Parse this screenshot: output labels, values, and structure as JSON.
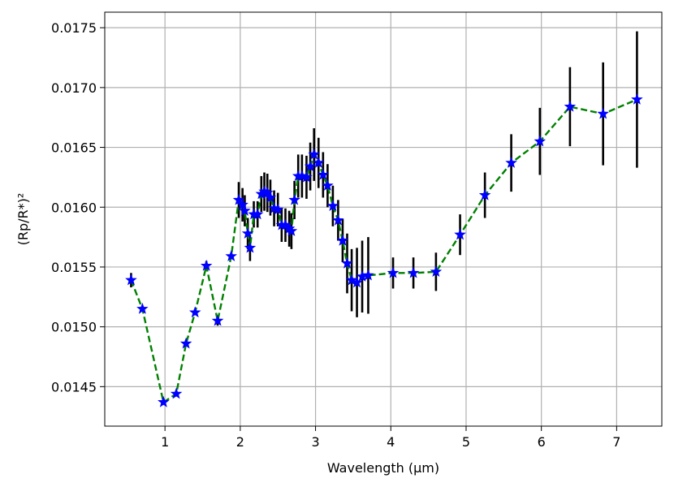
{
  "chart_data": {
    "type": "scatter",
    "title": "",
    "xlabel": "Wavelength (μm)",
    "ylabel": "(Rp/R*)²",
    "xlim": [
      0.2,
      7.6
    ],
    "ylim": [
      0.01417,
      0.01763
    ],
    "xticks": [
      1,
      2,
      3,
      4,
      5,
      6,
      7
    ],
    "yticks": [
      0.0145,
      0.015,
      0.0155,
      0.016,
      0.0165,
      0.017,
      0.0175
    ],
    "ytick_labels": [
      "0.0145",
      "0.0150",
      "0.0155",
      "0.0160",
      "0.0165",
      "0.0170",
      "0.0175"
    ],
    "grid": true,
    "line_color": "#008000",
    "marker_color": "#0000ff",
    "errorbar_color": "#000000",
    "series": [
      {
        "x": [
          0.55,
          0.7,
          0.98,
          1.15,
          1.28,
          1.4,
          1.55,
          1.7,
          1.88,
          1.98,
          2.03,
          2.06,
          2.1,
          2.13,
          2.18,
          2.23,
          2.28,
          2.32,
          2.36,
          2.4,
          2.45,
          2.5,
          2.55,
          2.6,
          2.65,
          2.68,
          2.72,
          2.77,
          2.82,
          2.88,
          2.93,
          2.98,
          3.04,
          3.1,
          3.16,
          3.23,
          3.3,
          3.36,
          3.42,
          3.48,
          3.55,
          3.62,
          3.7,
          4.03,
          4.3,
          4.6,
          4.92,
          5.25,
          5.6,
          5.98,
          6.38,
          6.82,
          7.27
        ],
        "y": [
          0.01539,
          0.01515,
          0.01437,
          0.01444,
          0.01486,
          0.01512,
          0.01551,
          0.01505,
          0.01559,
          0.01606,
          0.01602,
          0.01597,
          0.01578,
          0.01566,
          0.01594,
          0.01594,
          0.01611,
          0.01613,
          0.01612,
          0.01608,
          0.01599,
          0.01598,
          0.01585,
          0.01585,
          0.01582,
          0.0158,
          0.01606,
          0.01626,
          0.01626,
          0.01625,
          0.01634,
          0.01644,
          0.01637,
          0.01627,
          0.01618,
          0.01601,
          0.01589,
          0.01572,
          0.01553,
          0.01539,
          0.01537,
          0.01542,
          0.01543,
          0.01545,
          0.01545,
          0.01546,
          0.01577,
          0.0161,
          0.01637,
          0.01655,
          0.01684,
          0.01678,
          0.0169
        ],
        "yerr": [
          6e-05,
          0,
          0,
          0,
          0,
          0,
          4e-05,
          4e-05,
          0,
          0.00015,
          0.00014,
          0.00013,
          0.00013,
          0.00011,
          0.00011,
          0.00011,
          0.00015,
          0.00016,
          0.00016,
          0.00015,
          0.00015,
          0.00014,
          0.00014,
          0.00014,
          0.00015,
          0.00015,
          0.00016,
          0.00018,
          0.00018,
          0.00018,
          0.0002,
          0.00022,
          0.00021,
          0.00019,
          0.00018,
          0.00017,
          0.00017,
          0.00018,
          0.00025,
          0.00026,
          0.00029,
          0.0003,
          0.00032,
          0.00013,
          0.00013,
          0.00016,
          0.00017,
          0.00019,
          0.00024,
          0.00028,
          0.00033,
          0.00043,
          0.00057
        ]
      }
    ]
  }
}
